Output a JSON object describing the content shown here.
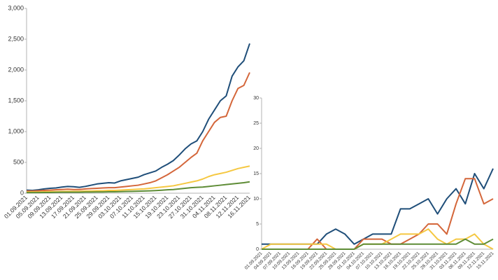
{
  "chart_data": [
    {
      "type": "line",
      "categories": [
        "01.09.2021",
        null,
        "05.09.2021",
        null,
        "09.09.2021",
        null,
        "13.09.2021",
        null,
        "17.09.2021",
        null,
        "21.09.2021",
        null,
        "25.09.2021",
        null,
        "29.09.2021",
        null,
        "03.10.2021",
        null,
        "07.10.2021",
        null,
        "11.10.2021",
        null,
        "15.10.2021",
        null,
        "19.10.2021",
        null,
        "23.10.2021",
        null,
        "27.10.2021",
        null,
        "31.10.2021",
        null,
        "04.11.2021",
        null,
        "08.11.2021",
        null,
        "12.11.2021",
        null,
        "16.11.2021"
      ],
      "series": [
        {
          "color": "#1f4e79",
          "values": [
            50,
            45,
            55,
            70,
            80,
            85,
            100,
            110,
            105,
            95,
            110,
            130,
            150,
            160,
            170,
            165,
            200,
            220,
            240,
            260,
            300,
            330,
            360,
            420,
            470,
            530,
            620,
            720,
            800,
            850,
            1000,
            1200,
            1350,
            1500,
            1580,
            1900,
            2050,
            2150,
            2430
          ]
        },
        {
          "color": "#d4663a",
          "values": [
            35,
            35,
            40,
            45,
            50,
            55,
            60,
            65,
            60,
            60,
            70,
            75,
            80,
            85,
            90,
            90,
            100,
            110,
            120,
            130,
            150,
            170,
            200,
            250,
            300,
            360,
            420,
            500,
            580,
            650,
            850,
            1000,
            1150,
            1230,
            1250,
            1500,
            1700,
            1750,
            1960
          ]
        },
        {
          "color": "#f5c842",
          "values": [
            20,
            20,
            20,
            22,
            25,
            25,
            28,
            30,
            30,
            30,
            35,
            35,
            40,
            40,
            45,
            45,
            50,
            55,
            60,
            65,
            70,
            80,
            90,
            100,
            110,
            120,
            140,
            160,
            180,
            200,
            230,
            270,
            300,
            320,
            340,
            370,
            400,
            420,
            440
          ]
        },
        {
          "color": "#5e8c36",
          "values": [
            10,
            10,
            10,
            12,
            12,
            14,
            15,
            15,
            15,
            15,
            18,
            18,
            20,
            20,
            22,
            22,
            25,
            28,
            30,
            32,
            35,
            38,
            42,
            48,
            55,
            60,
            70,
            80,
            90,
            95,
            100,
            110,
            120,
            130,
            140,
            150,
            160,
            170,
            185
          ]
        }
      ],
      "ylim": [
        0,
        3000
      ],
      "yticks": [
        0,
        500,
        {
          "value": 1000,
          "label": "1,000"
        },
        {
          "value": 1500,
          "label": "1,500"
        },
        {
          "value": 2000,
          "label": "2,000"
        },
        {
          "value": 2500,
          "label": "2,500"
        },
        {
          "value": 3000,
          "label": "3,000"
        }
      ],
      "grid": false
    },
    {
      "type": "line",
      "categories": [
        "01.09.2021",
        "04.09.2021",
        "07.09.2021",
        "10.09.2021",
        "13.09.2021",
        "16.09.2021",
        "19.09.2021",
        "22.09.2021",
        "25.09.2021",
        "28.09.2021",
        "01.10.2021",
        "04.10.2021",
        "07.10.2021",
        "10.10.2021",
        "13.10.2021",
        "16.10.2021",
        "19.10.2021",
        "22.10.2021",
        "25.10.2021",
        "28.10.2021",
        "31.10.2021",
        "03.11.2021",
        "06.11.2021",
        "09.11.2021",
        "12.11.2021",
        "15.11.2021"
      ],
      "series": [
        {
          "color": "#1f4e79",
          "values": [
            1,
            1,
            1,
            1,
            1,
            1,
            1,
            3,
            4,
            3,
            1,
            2,
            3,
            3,
            3,
            8,
            8,
            9,
            10,
            7,
            10,
            12,
            9,
            15,
            12,
            16
          ]
        },
        {
          "color": "#d4663a",
          "values": [
            0,
            0,
            0,
            0,
            0,
            0,
            2,
            0,
            0,
            0,
            0,
            2,
            2,
            2,
            1,
            1,
            2,
            3,
            5,
            5,
            3,
            9,
            14,
            14,
            9,
            10
          ]
        },
        {
          "color": "#f5c842",
          "values": [
            0,
            1,
            1,
            1,
            1,
            1,
            1,
            1,
            0,
            0,
            0,
            1,
            1,
            1,
            2,
            3,
            3,
            3,
            4,
            2,
            1,
            2,
            2,
            3,
            1,
            0
          ]
        },
        {
          "color": "#5e8c36",
          "values": [
            0,
            0,
            0,
            0,
            0,
            0,
            0,
            0,
            0,
            0,
            0,
            1,
            1,
            1,
            1,
            1,
            1,
            1,
            1,
            1,
            1,
            1,
            2,
            1,
            1,
            2
          ]
        }
      ],
      "ylim": [
        0,
        30
      ],
      "yticks": [
        0,
        5,
        10,
        15,
        20,
        25,
        30
      ],
      "grid": false
    }
  ]
}
